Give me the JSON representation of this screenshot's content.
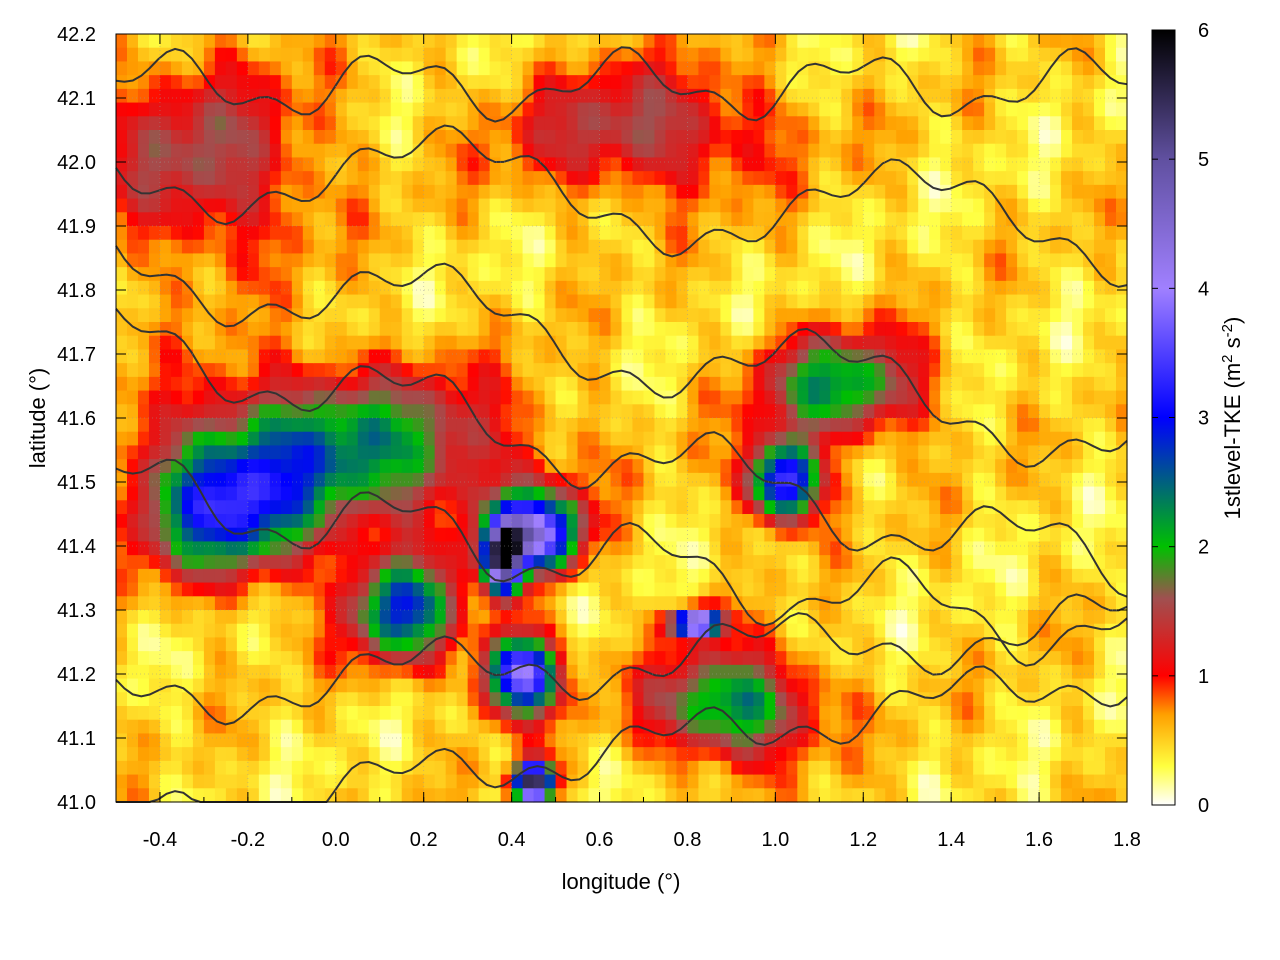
{
  "chart_data": {
    "type": "heatmap",
    "title": "",
    "xlabel": "longitude (°)",
    "ylabel": "latitude (°)",
    "xlim": [
      -0.5,
      1.8
    ],
    "ylim": [
      41.0,
      42.2
    ],
    "x_ticks": [
      -0.4,
      -0.2,
      0.0,
      0.2,
      0.4,
      0.6,
      0.8,
      1.0,
      1.2,
      1.4,
      1.6,
      1.8
    ],
    "x_tick_labels": [
      "-0.4",
      "-0.2",
      "0.0",
      "0.2",
      "0.4",
      "0.6",
      "0.8",
      "1.0",
      "1.2",
      "1.4",
      "1.6",
      "1.8"
    ],
    "y_ticks": [
      41.0,
      41.1,
      41.2,
      41.3,
      41.4,
      41.5,
      41.6,
      41.7,
      41.8,
      41.9,
      42.0,
      42.1,
      42.2
    ],
    "y_tick_labels": [
      "41.0",
      "41.1",
      "41.2",
      "41.3",
      "41.4",
      "41.5",
      "41.6",
      "41.7",
      "41.8",
      "41.9",
      "42.0",
      "42.1",
      "42.2"
    ],
    "grid": true,
    "colorbar": {
      "label": "1stlevel-TKE (m² s⁻²)",
      "label_main": "1stlevel-TKE (m",
      "label_sup1": "2",
      "label_mid": " s",
      "label_sup2": "-2",
      "label_end": ")",
      "range": [
        0,
        6
      ],
      "ticks": [
        0,
        1,
        2,
        3,
        4,
        5,
        6
      ],
      "tick_labels": [
        "0",
        "1",
        "2",
        "3",
        "4",
        "5",
        "6"
      ],
      "colormap": [
        {
          "value": 0.0,
          "color": "#ffffff"
        },
        {
          "value": 0.3,
          "color": "#ffff40"
        },
        {
          "value": 0.7,
          "color": "#ffa000"
        },
        {
          "value": 1.0,
          "color": "#ff0000"
        },
        {
          "value": 1.6,
          "color": "#a05050"
        },
        {
          "value": 2.0,
          "color": "#00c000"
        },
        {
          "value": 3.0,
          "color": "#0000ff"
        },
        {
          "value": 4.0,
          "color": "#a080ff"
        },
        {
          "value": 5.0,
          "color": "#6050a0"
        },
        {
          "value": 6.0,
          "color": "#000000"
        }
      ]
    },
    "field_features": [
      {
        "lon": 0.0,
        "lat": 41.55,
        "value": 1.9,
        "sx": 0.38,
        "sy": 0.12
      },
      {
        "lon": -0.25,
        "lat": 41.45,
        "value": 2.2,
        "sx": 0.18,
        "sy": 0.1
      },
      {
        "lon": 0.15,
        "lat": 41.3,
        "value": 2.3,
        "sx": 0.12,
        "sy": 0.08
      },
      {
        "lon": 0.45,
        "lat": 41.42,
        "value": 3.8,
        "sx": 0.1,
        "sy": 0.06
      },
      {
        "lon": 0.38,
        "lat": 41.38,
        "value": 4.6,
        "sx": 0.04,
        "sy": 0.05
      },
      {
        "lon": 0.42,
        "lat": 41.2,
        "value": 3.6,
        "sx": 0.08,
        "sy": 0.06
      },
      {
        "lon": 0.45,
        "lat": 41.03,
        "value": 5.5,
        "sx": 0.04,
        "sy": 0.03
      },
      {
        "lon": 0.82,
        "lat": 41.28,
        "value": 5.0,
        "sx": 0.05,
        "sy": 0.02
      },
      {
        "lon": 1.02,
        "lat": 41.5,
        "value": 3.2,
        "sx": 0.08,
        "sy": 0.06
      },
      {
        "lon": 1.15,
        "lat": 41.65,
        "value": 1.8,
        "sx": 0.18,
        "sy": 0.08
      },
      {
        "lon": -0.3,
        "lat": 42.0,
        "value": 1.1,
        "sx": 0.25,
        "sy": 0.15
      },
      {
        "lon": 0.7,
        "lat": 42.05,
        "value": 1.1,
        "sx": 0.3,
        "sy": 0.1
      },
      {
        "lon": 0.9,
        "lat": 41.15,
        "value": 2.0,
        "sx": 0.18,
        "sy": 0.08
      }
    ]
  }
}
